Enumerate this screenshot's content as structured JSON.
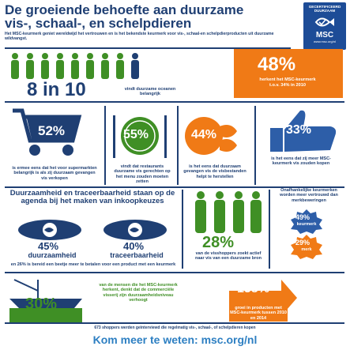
{
  "header": {
    "title_line1": "De groeiende behoefte aan duurzame",
    "title_line2": "vis-, schaal-, en schelpdieren",
    "subtitle": "Het MSC-keurmerk geniet wereldwijd het vertrouwen en is het bekendste keurmerk voor vis-, schaal-en schelpdierproducten uit duurzame wildvangst."
  },
  "logo": {
    "top": "GECERTIFICEERD DUURZAAM",
    "middle": "MSC",
    "bottom": "www.msc.org/nl"
  },
  "stats": {
    "eight_in_ten": {
      "value": "8 in 10",
      "text": "vindt duurzame oceanen belangrijk"
    },
    "pct48": {
      "value": "48%",
      "text": "herkent het MSC-keurmerk t.o.v. 34% in 2010"
    },
    "pct52": {
      "value": "52%",
      "text": "is ermee eens dat het voor supermarkten belangrijk is als zij duurzaam gevangen vis verkopen"
    },
    "pct55": {
      "value": "55%",
      "text": "vindt dat restaurants duurzame vis gerechten op het menu zouden moeten zetten"
    },
    "pct44": {
      "value": "44%",
      "text": "is het eens dat duurzaam gevangen vis de visbestanden helpt te herstellen"
    },
    "pct33": {
      "value": "33%",
      "text": "is het eens dat zij meer MSC-keurmerk vis zouden kopen"
    },
    "agenda_title": "Duurzaamheid en traceerbaarheid staan op de agenda bij het maken van inkoopkeuzes",
    "pct45": {
      "value": "45%",
      "label": "duurzaamheid"
    },
    "pct40": {
      "value": "40%",
      "label": "traceerbaarheid"
    },
    "agenda_footnote": "en 26% is bereid een beetje meer te betalen voor een product met een keurmerk",
    "pct28": {
      "value": "28%",
      "text": "van de visshoppers zoekt actief naar vis van een duurzame bron"
    },
    "independent": {
      "text": "Onafhankelijke keurmerken worden meer vertrouwd dan merkbeweringen",
      "pct_a": "49%",
      "pct_b": "29%",
      "label_a": "keurmerk",
      "label_b": "merk"
    },
    "pct30": {
      "value": "30%",
      "text": "van de mensen die het MSC-keurmerk herkent, denkt dat de commerciële visserij zijn duurzaamheidsniveau verhoogt"
    },
    "pct138": {
      "value": "138%",
      "text": "groei in producten met MSC-keurmerk tussen 2010 en 2014"
    }
  },
  "footer": {
    "note": "673 shoppers werden geïnterviewd die regelmatig vis-, schaal-, of schelpdieren kopen",
    "cta": "Kom meer te weten: msc.org/nl"
  },
  "colors": {
    "navy": "#1f3f73",
    "green": "#3f8f25",
    "orange": "#f07a16",
    "blue": "#2d5ea8",
    "cta": "#2d7fc2"
  }
}
